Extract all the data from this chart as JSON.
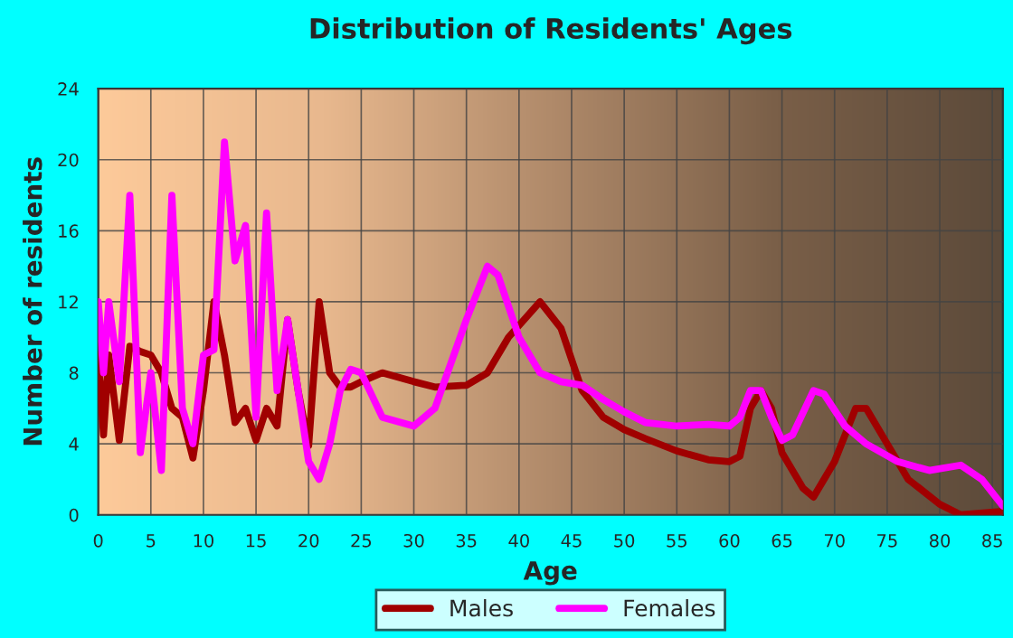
{
  "chart_data": {
    "type": "line",
    "title": "Distribution of Residents' Ages",
    "xlabel": "Age",
    "ylabel": "Number of residents",
    "xlim": [
      0,
      86
    ],
    "xticks": [
      0,
      5,
      10,
      15,
      20,
      25,
      30,
      35,
      40,
      45,
      50,
      55,
      60,
      65,
      70,
      75,
      80,
      85
    ],
    "ylim": [
      0,
      24
    ],
    "yticks": [
      0,
      4,
      8,
      12,
      16,
      20,
      24
    ],
    "grid": true,
    "legend": "bottom",
    "line_style": "solid",
    "marker": "none",
    "series": [
      {
        "name": "Males",
        "color": "#a00000",
        "x": [
          0,
          0.5,
          1,
          2,
          3,
          4,
          5,
          6,
          7,
          8,
          9,
          10,
          11,
          12,
          13,
          14,
          15,
          16,
          17,
          18,
          19,
          20,
          21,
          22,
          23,
          24,
          25,
          27,
          30,
          32,
          35,
          37,
          39,
          42,
          44,
          46,
          48,
          50,
          52,
          55,
          58,
          60,
          61,
          62,
          63,
          64,
          65,
          67,
          68,
          70,
          72,
          73,
          75,
          77,
          80,
          82,
          86
        ],
        "values": [
          9,
          4.5,
          9,
          4.2,
          9.5,
          9.2,
          9,
          8,
          6,
          5.5,
          3.2,
          7,
          12,
          9,
          5.2,
          6,
          4.2,
          6,
          5,
          11,
          7,
          3.9,
          12,
          8,
          7.2,
          7.2,
          7.5,
          8,
          7.5,
          7.2,
          7.3,
          8,
          10,
          12,
          10.5,
          7,
          5.5,
          4.8,
          4.3,
          3.6,
          3.1,
          3,
          3.3,
          6,
          7,
          6,
          3.5,
          1.5,
          1,
          3,
          6,
          6,
          4,
          2,
          0.6,
          0,
          0.2
        ]
      },
      {
        "name": "Females",
        "color": "#ff00ff",
        "x": [
          0,
          0.5,
          1,
          2,
          3,
          4,
          5,
          6,
          7,
          8,
          9,
          10,
          11,
          12,
          13,
          14,
          15,
          16,
          17,
          18,
          19,
          20,
          21,
          22,
          23,
          24,
          25,
          27,
          30,
          32,
          35,
          37,
          38,
          40,
          42,
          44,
          46,
          48,
          50,
          52,
          55,
          58,
          60,
          61,
          62,
          63,
          64,
          65,
          66,
          68,
          69,
          71,
          73,
          76,
          79,
          82,
          84,
          86
        ],
        "values": [
          12,
          8,
          12,
          7.5,
          18,
          3.5,
          8,
          2.5,
          18,
          6,
          4,
          9,
          9.3,
          21,
          14.3,
          16.3,
          5.5,
          17,
          7,
          11,
          7,
          3,
          2,
          4,
          7,
          8.2,
          8,
          5.5,
          5,
          6,
          11,
          14,
          13.5,
          10,
          8,
          7.5,
          7.3,
          6.5,
          5.8,
          5.2,
          5,
          5.1,
          5,
          5.5,
          7,
          7,
          5.5,
          4.2,
          4.5,
          7,
          6.8,
          5,
          4,
          3,
          2.5,
          2.8,
          2,
          0.5
        ]
      }
    ]
  }
}
